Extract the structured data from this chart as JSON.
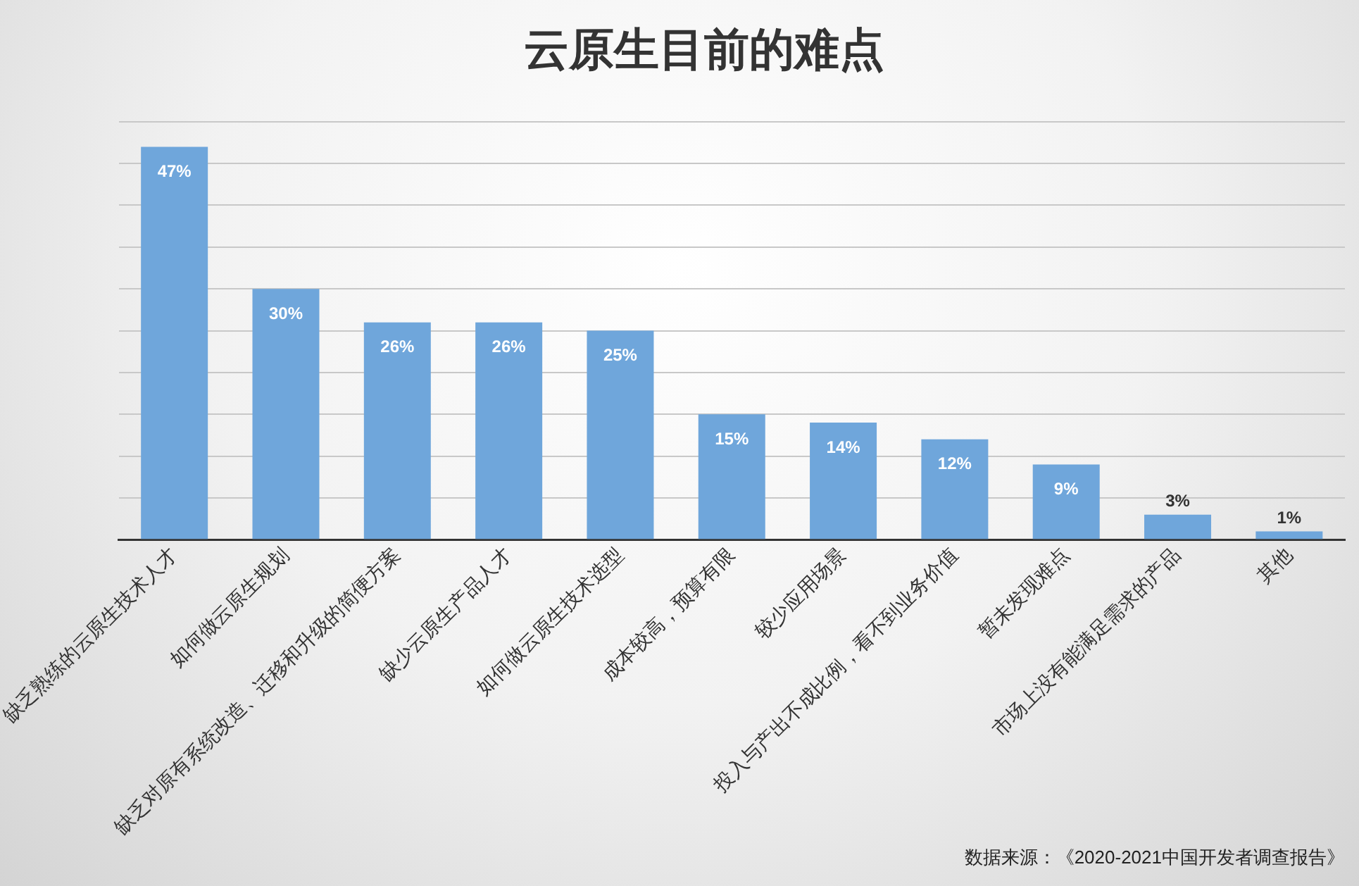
{
  "chart_data": {
    "type": "bar",
    "title": "云原生目前的难点",
    "categories": [
      "缺乏熟练的云原生技术人才",
      "如何做云原生规划",
      "缺乏对原有系统改造、迁移和升级的简便方案",
      "缺少云原生产品人才",
      "如何做云原生技术选型",
      "成本较高，预算有限",
      "较少应用场景",
      "投入与产出不成比例，看不到业务价值",
      "暂未发现难点",
      "市场上没有能满足需求的产品",
      "其他"
    ],
    "values": [
      47,
      30,
      26,
      26,
      25,
      15,
      14,
      12,
      9,
      3,
      1
    ],
    "value_labels": [
      "47%",
      "30%",
      "26%",
      "26%",
      "25%",
      "15%",
      "14%",
      "12%",
      "9%",
      "3%",
      "1%"
    ],
    "color": "#6fa6db",
    "ylim": [
      0,
      50
    ],
    "yticks": [
      {
        "value": 0,
        "label": null
      },
      {
        "value": 5,
        "label": null
      },
      {
        "value": 10,
        "label": null
      },
      {
        "value": 15,
        "label": null
      },
      {
        "value": 20,
        "label": null
      },
      {
        "value": 25,
        "label": null
      },
      {
        "value": 30,
        "label": null
      },
      {
        "value": 35,
        "label": null
      },
      {
        "value": 40,
        "label": null
      },
      {
        "value": 45,
        "label": null
      },
      {
        "value": 50,
        "label": null
      }
    ],
    "grid": "y",
    "tick_labels": "x",
    "legend": false,
    "annotations": [
      "数据来源：《2020-2021中国开发者调查报告》"
    ]
  }
}
